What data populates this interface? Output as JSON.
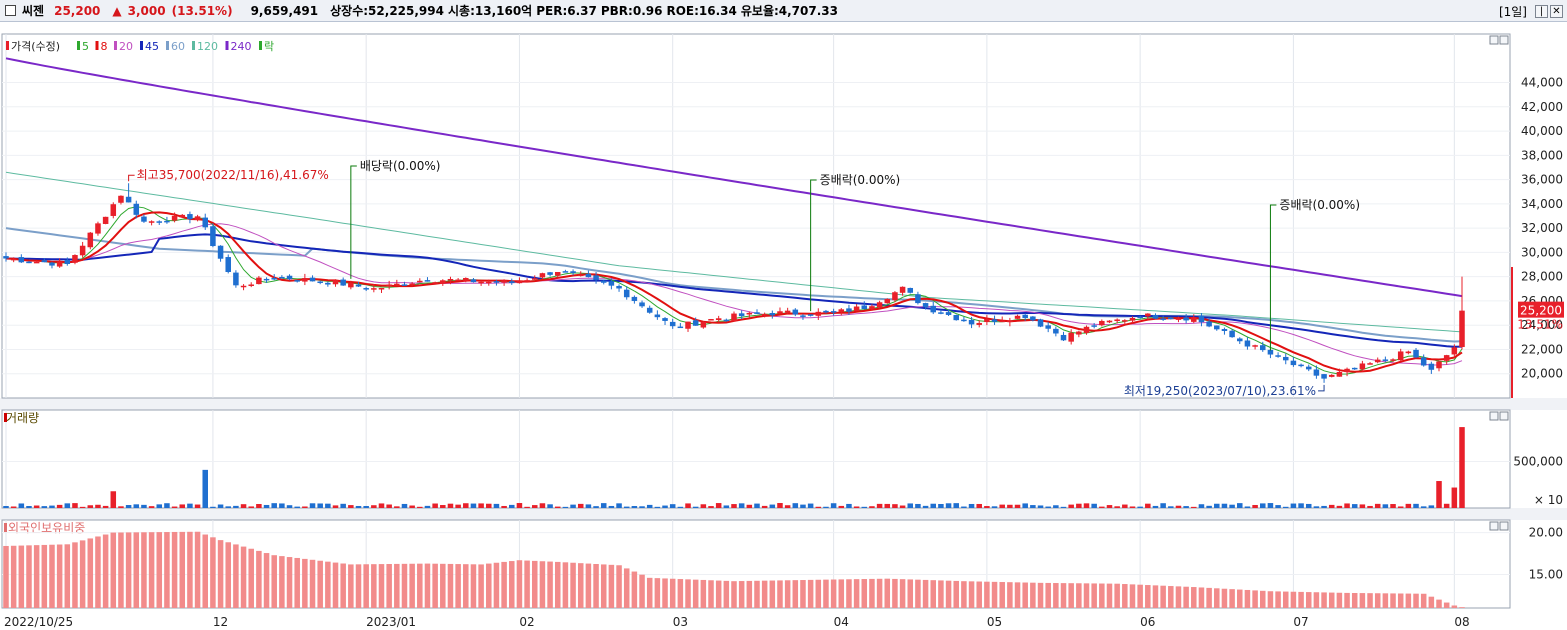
{
  "header": {
    "stock_name": "씨젠",
    "price": "25,200",
    "change_arrow": "▲",
    "change": "3,000",
    "change_rate": "(13.51%)",
    "volume": "9,659,491",
    "listed_shares": "상장수:52,225,994",
    "market_cap": "시총:13,160억",
    "per": "PER:6.37",
    "pbr": "PBR:0.96",
    "roe": "ROE:16.34",
    "reserve_ratio": "유보율:4,707.33",
    "period": "[1일]",
    "window_buttons": [
      "|",
      "✕"
    ]
  },
  "colors": {
    "up": "#e8202a",
    "down": "#1f6fd0",
    "ma5": "#2ea82e",
    "ma8": "#e11010",
    "ma20": "#c050c0",
    "ma45": "#1426b8",
    "ma60": "#7b9fc9",
    "ma120": "#5dbaa0",
    "ma240": "#7a28c8",
    "foreign": "#f28b8b"
  },
  "chart_data": [
    {
      "type": "candlestick",
      "title": "가격(수정)",
      "legend": [
        {
          "label": "가격(수정)",
          "color": "#e8202a"
        },
        {
          "label": "5",
          "color": "#2ea82e"
        },
        {
          "label": "8",
          "color": "#e11010"
        },
        {
          "label": "20",
          "color": "#c050c0"
        },
        {
          "label": "45",
          "color": "#1426b8"
        },
        {
          "label": "60",
          "color": "#7b9fc9"
        },
        {
          "label": "120",
          "color": "#5dbaa0"
        },
        {
          "label": "240",
          "color": "#7a28c8"
        },
        {
          "label": "락",
          "color": "#2ea82e"
        }
      ],
      "y_ticks": [
        "44,000",
        "42,000",
        "40,000",
        "38,000",
        "36,000",
        "34,000",
        "32,000",
        "30,000",
        "28,000",
        "26,000",
        "24,000",
        "22,000",
        "20,000"
      ],
      "y_tick_values": [
        44000,
        42000,
        40000,
        38000,
        36000,
        34000,
        32000,
        30000,
        28000,
        26000,
        24000,
        22000,
        20000
      ],
      "ylim": [
        18000,
        48000
      ],
      "x_ticks": [
        "2022/10/25",
        "12",
        "2023/01",
        "02",
        "03",
        "04",
        "05",
        "06",
        "07",
        "08"
      ],
      "x_tick_index": [
        0,
        27,
        47,
        67,
        87,
        108,
        128,
        148,
        168,
        189
      ],
      "close_keypoints": [
        [
          0,
          29500
        ],
        [
          8,
          29000
        ],
        [
          15,
          34800
        ],
        [
          18,
          32500
        ],
        [
          25,
          33000
        ],
        [
          30,
          27200
        ],
        [
          35,
          28000
        ],
        [
          43,
          27500
        ],
        [
          48,
          27000
        ],
        [
          55,
          27800
        ],
        [
          66,
          27500
        ],
        [
          72,
          28500
        ],
        [
          80,
          27000
        ],
        [
          87,
          23800
        ],
        [
          93,
          24600
        ],
        [
          100,
          25000
        ],
        [
          108,
          25000
        ],
        [
          112,
          25500
        ],
        [
          117,
          27000
        ],
        [
          120,
          25500
        ],
        [
          126,
          24200
        ],
        [
          133,
          24800
        ],
        [
          138,
          23000
        ],
        [
          142,
          24000
        ],
        [
          148,
          24800
        ],
        [
          155,
          24600
        ],
        [
          160,
          23000
        ],
        [
          166,
          21300
        ],
        [
          172,
          19600
        ],
        [
          178,
          20800
        ],
        [
          183,
          21800
        ],
        [
          186,
          20200
        ],
        [
          189,
          22200
        ],
        [
          190,
          25200
        ]
      ],
      "annotations": [
        {
          "text": "최고35,700(2022/11/16),41.67%",
          "index": 16,
          "price": 35700,
          "color": "#d5161b"
        },
        {
          "text": "최저19,250(2023/07/10),23.61%",
          "index": 172,
          "price": 19250,
          "color": "#1c3f94"
        },
        {
          "text": "배당락(0.00%)",
          "index": 45,
          "color": "#0a7a0a"
        },
        {
          "text": "증배락(0.00%)",
          "index": 105,
          "color": "#0a7a0a"
        },
        {
          "text": "증배락(0.00%)",
          "index": 165,
          "color": "#0a7a0a"
        }
      ],
      "last_price_label": "25,200",
      "last_rate_label": "13.51%"
    },
    {
      "type": "bar",
      "title": "거래량",
      "y_ticks": [
        "500,000"
      ],
      "y_tick_values": [
        500000
      ],
      "unit_label": "× 10",
      "ylim": [
        0,
        1000000
      ],
      "typical_value": 30000,
      "spikes": [
        {
          "index": 14,
          "value": 180000
        },
        {
          "index": 26,
          "value": 410000
        },
        {
          "index": 187,
          "value": 290000
        },
        {
          "index": 189,
          "value": 220000
        },
        {
          "index": 190,
          "value": 870000
        }
      ]
    },
    {
      "type": "bar",
      "title": "외국인보유비중",
      "y_ticks": [
        "20.00",
        "15.00"
      ],
      "y_tick_values": [
        20,
        15
      ],
      "ylim": [
        11,
        21.5
      ],
      "keypoints": [
        [
          0,
          18.4
        ],
        [
          8,
          18.6
        ],
        [
          14,
          20.0
        ],
        [
          25,
          20.1
        ],
        [
          28,
          19.1
        ],
        [
          35,
          17.3
        ],
        [
          45,
          16.2
        ],
        [
          55,
          16.3
        ],
        [
          62,
          16.2
        ],
        [
          67,
          16.7
        ],
        [
          72,
          16.5
        ],
        [
          80,
          16.1
        ],
        [
          84,
          14.6
        ],
        [
          95,
          14.2
        ],
        [
          108,
          14.4
        ],
        [
          115,
          14.5
        ],
        [
          125,
          14.2
        ],
        [
          135,
          14.0
        ],
        [
          145,
          13.9
        ],
        [
          155,
          13.5
        ],
        [
          165,
          13.0
        ],
        [
          175,
          12.8
        ],
        [
          185,
          12.7
        ],
        [
          189,
          11.3
        ],
        [
          190,
          11.1
        ]
      ]
    }
  ]
}
